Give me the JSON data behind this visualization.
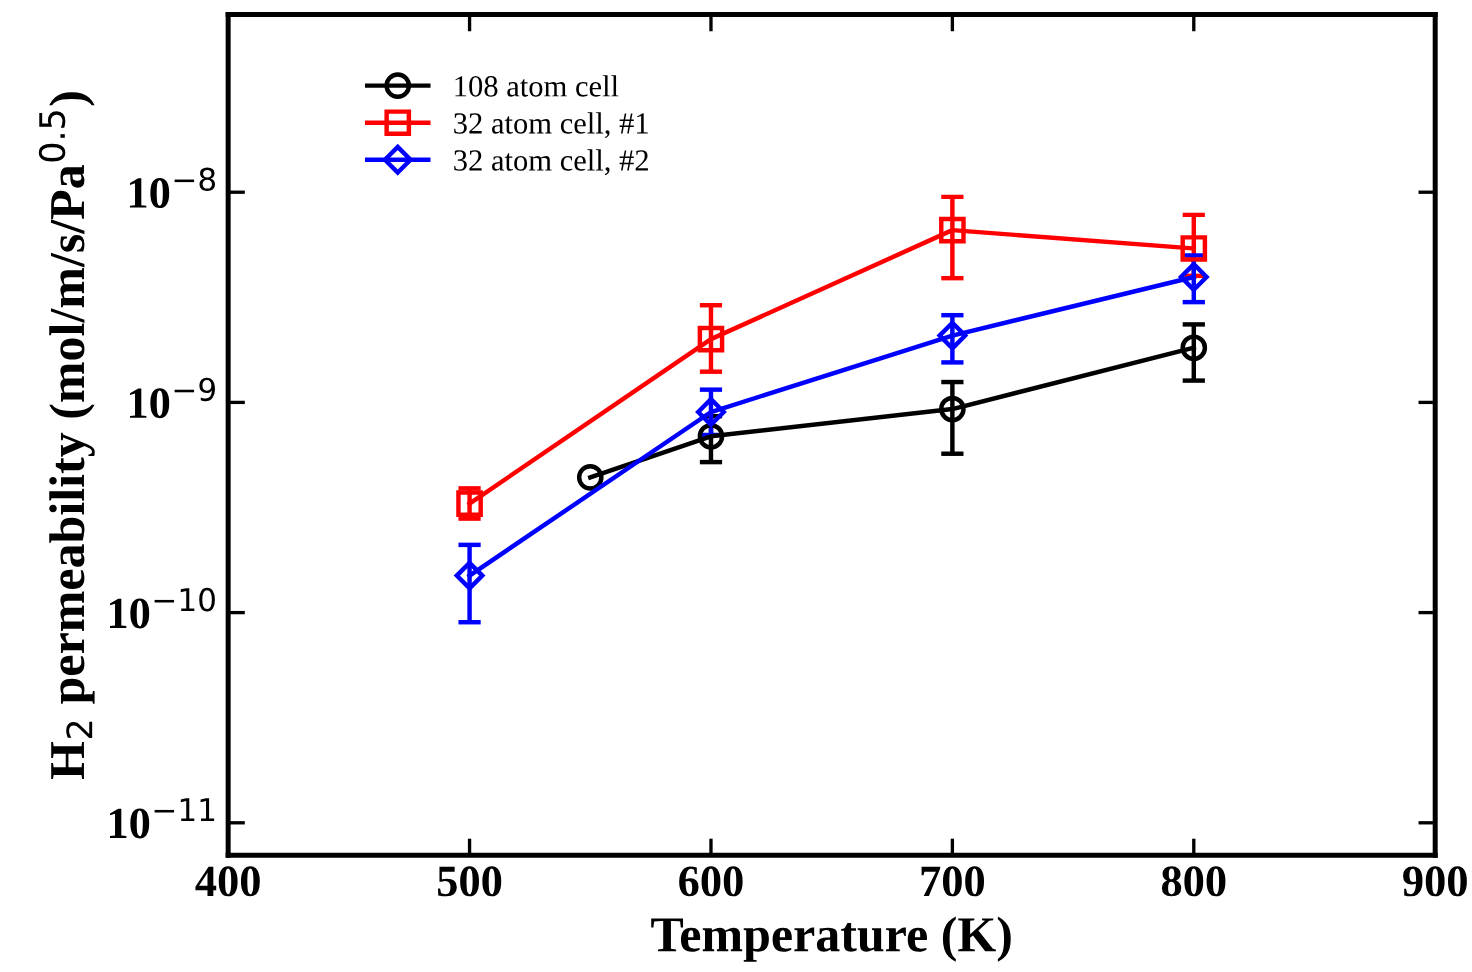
{
  "chart_data": {
    "type": "line",
    "xlabel": "Temperature (K)",
    "ylabel": "H$_{2}$ permeability (mol/m/s/Pa$^{0.5}$)",
    "log": "y",
    "xlim": [
      400,
      900
    ],
    "xticks": [
      400,
      500,
      600,
      700,
      800,
      900
    ],
    "ylim": [
      7e-12,
      7e-08
    ],
    "yticks": [
      {
        "value": 1e-11,
        "label": "10$^{−11}$"
      },
      {
        "value": 1e-10,
        "label": "10$^{−10}$"
      },
      {
        "value": 1e-09,
        "label": "10$^{−9}$"
      },
      {
        "value": 1e-08,
        "label": "10$^{−8}$"
      }
    ],
    "grid": false,
    "legend": "top left",
    "line_style": "solid",
    "series": [
      {
        "name": "108 atom cell",
        "color": "#000000",
        "marker": "circle",
        "x": [
          550,
          600,
          700,
          800
        ],
        "values": [
          4.4e-10,
          6.9e-10,
          9.3e-10,
          1.82e-09
        ],
        "errors": [
          null,
          [
            5.2e-10,
            8.6e-10
          ],
          [
            5.7e-10,
            1.25e-09
          ],
          [
            1.27e-09,
            2.35e-09
          ]
        ]
      },
      {
        "name": "32 atom cell, #1",
        "color": "#ff0000",
        "marker": "square",
        "x": [
          500,
          600,
          700,
          800
        ],
        "values": [
          3.3e-10,
          2e-09,
          6.6e-09,
          5.4e-09
        ],
        "errors": [
          [
            2.8e-10,
            3.9e-10
          ],
          [
            1.4e-09,
            2.9e-09
          ],
          [
            3.9e-09,
            9.5e-09
          ],
          [
            4e-09,
            7.8e-09
          ]
        ]
      },
      {
        "name": "32 atom cell, #2",
        "color": "#0000ff",
        "marker": "diamond",
        "x": [
          500,
          600,
          700,
          800
        ],
        "values": [
          1.5e-10,
          9e-10,
          2.08e-09,
          3.95e-09
        ],
        "errors": [
          [
            9e-11,
            2.1e-10
          ],
          [
            7e-10,
            1.15e-09
          ],
          [
            1.55e-09,
            2.6e-09
          ],
          [
            3e-09,
            5e-09
          ]
        ]
      }
    ]
  }
}
